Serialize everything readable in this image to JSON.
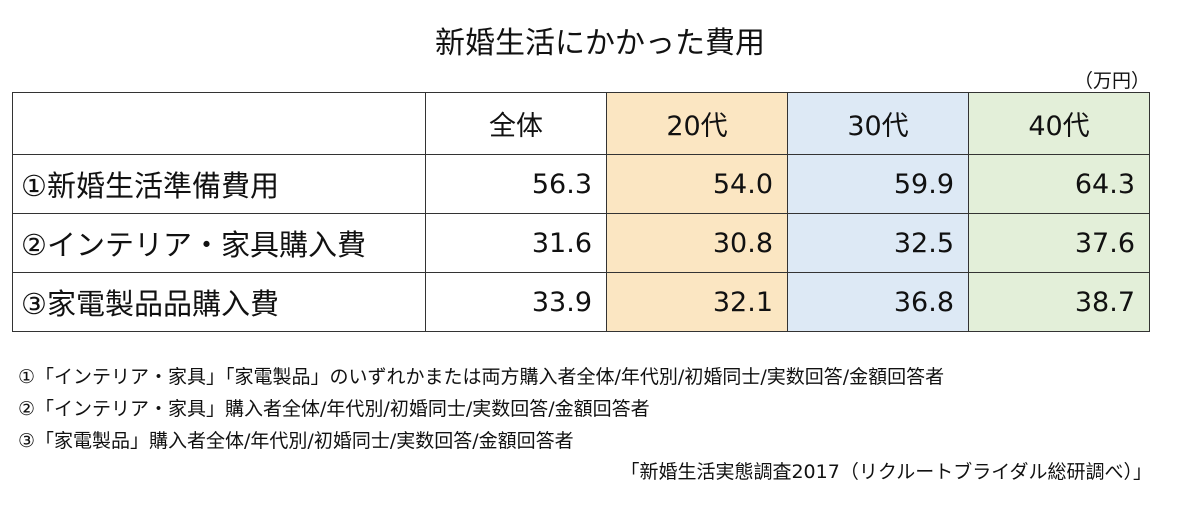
{
  "header": {
    "title": "新婚生活にかかった費用",
    "unit": "（万円）"
  },
  "table": {
    "columns": [
      "全体",
      "20代",
      "30代",
      "40代"
    ],
    "rows": [
      {
        "label": "①新婚生活準備費用",
        "values": [
          "56.3",
          "54.0",
          "59.9",
          "64.3"
        ]
      },
      {
        "label": "②インテリア・家具購入費",
        "values": [
          "31.6",
          "30.8",
          "32.5",
          "37.6"
        ]
      },
      {
        "label": "③家電製品品購入費",
        "values": [
          "33.9",
          "32.1",
          "36.8",
          "38.7"
        ]
      }
    ]
  },
  "notes": [
    "①「インテリア・家具」「家電製品」のいずれかまたは両方購入者全体/年代別/初婚同士/実数回答/金額回答者",
    "②「インテリア・家具」購入者全体/年代別/初婚同士/実数回答/金額回答者",
    "③「家電製品」購入者全体/年代別/初婚同士/実数回答/金額回答者"
  ],
  "source": "「新婚生活実態調査2017（リクルートブライダル総研調べ）」"
}
